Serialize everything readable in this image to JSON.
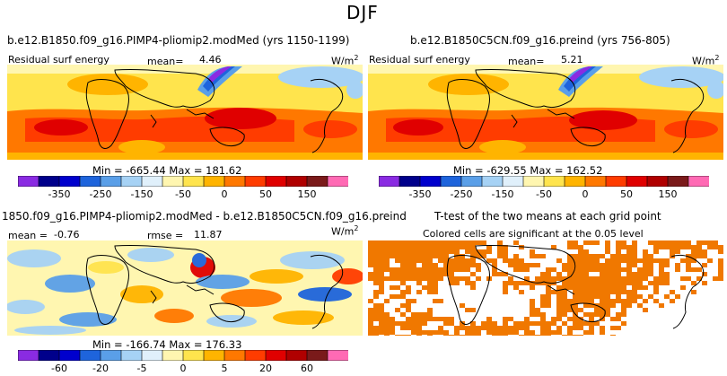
{
  "figure_title": "DJF",
  "chart_data": [
    {
      "type": "heatmap",
      "panel": "top-left",
      "title": "b.e12.B1850.f09_g16.PIMP4-pliomip2.modMed (yrs 1150-1199)",
      "left_label": "Residual surf energy",
      "mean_label": "mean=",
      "mean_value": "4.46",
      "units_base": "W/m",
      "units_exp": "2",
      "min_label": "Min =",
      "min_value": "-665.44",
      "max_label": "Max =",
      "max_value": "181.62",
      "colorbar_ticks": [
        "-350",
        "-250",
        "-150",
        "-50",
        "0",
        "50",
        "150"
      ],
      "colorbar_colors": [
        "#8a2be2",
        "#00008b",
        "#0000cd",
        "#1e64dc",
        "#5a9fe8",
        "#a6d2f5",
        "#e0f0fb",
        "#fff6b0",
        "#ffe44d",
        "#ffb400",
        "#ff7800",
        "#ff3c00",
        "#e00000",
        "#b00000",
        "#7a1a1a",
        "#ff6ab4"
      ]
    },
    {
      "type": "heatmap",
      "panel": "top-right",
      "title": "b.e12.B1850C5CN.f09_g16.preind (yrs 756-805)",
      "left_label": "Residual surf energy",
      "mean_label": "mean=",
      "mean_value": "5.21",
      "units_base": "W/m",
      "units_exp": "2",
      "min_label": "Min =",
      "min_value": "-629.55",
      "max_label": "Max =",
      "max_value": "162.52",
      "colorbar_ticks": [
        "-350",
        "-250",
        "-150",
        "-50",
        "0",
        "50",
        "150"
      ],
      "colorbar_colors": [
        "#8a2be2",
        "#00008b",
        "#0000cd",
        "#1e64dc",
        "#5a9fe8",
        "#a6d2f5",
        "#e0f0fb",
        "#fff6b0",
        "#ffe44d",
        "#ffb400",
        "#ff7800",
        "#ff3c00",
        "#e00000",
        "#b00000",
        "#7a1a1a",
        "#ff6ab4"
      ]
    },
    {
      "type": "heatmap",
      "panel": "bottom-left",
      "title": "1850.f09_g16.PIMP4-pliomip2.modMed - b.e12.B1850C5CN.f09_g16.preind",
      "left_label": "mean =",
      "left_value": "-0.76",
      "rmse_label": "rmse =",
      "rmse_value": "11.87",
      "units_base": "W/m",
      "units_exp": "2",
      "min_label": "Min =",
      "min_value": "-166.74",
      "max_label": "Max =",
      "max_value": "176.33",
      "colorbar_ticks": [
        "-60",
        "-20",
        "-5",
        "0",
        "5",
        "20",
        "60"
      ],
      "colorbar_colors": [
        "#8a2be2",
        "#00008b",
        "#0000cd",
        "#1e64dc",
        "#5a9fe8",
        "#a6d2f5",
        "#e0f0fb",
        "#fff6b0",
        "#ffe44d",
        "#ffb400",
        "#ff7800",
        "#ff3c00",
        "#e00000",
        "#b00000",
        "#7a1a1a",
        "#ff6ab4"
      ]
    },
    {
      "type": "heatmap",
      "panel": "bottom-right",
      "title": "T-test of the two means at each grid point",
      "subtitle": "Colored cells are significant at the 0.05 level",
      "significant_color": "#f07800"
    }
  ]
}
